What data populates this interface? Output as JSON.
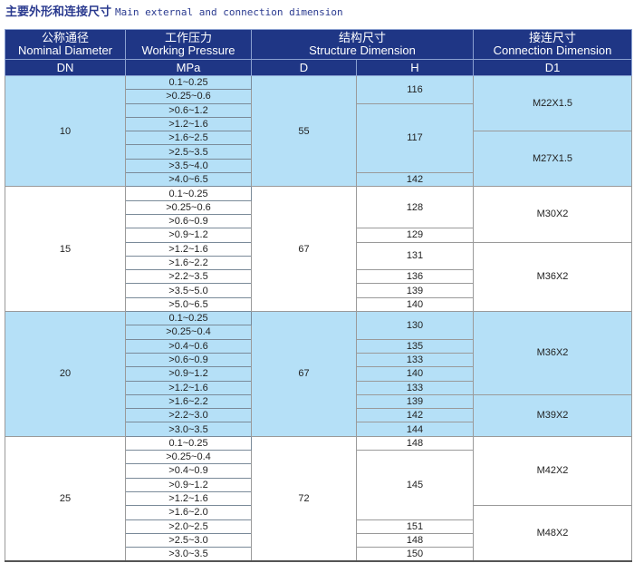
{
  "title": {
    "cn": "主要外形和连接尺寸",
    "en": "Main external and connection  dimension"
  },
  "header": {
    "nominal_cn": "公称通径",
    "nominal_en": "Nominal Diameter",
    "pressure_cn": "工作压力",
    "pressure_en": "Working Pressure",
    "structure_cn": "结构尺寸",
    "structure_en": "Structure Dimension",
    "connection_cn": "接连尺寸",
    "connection_en": "Connection Dimension",
    "dn": "DN",
    "mpa": "MPa",
    "d": "D",
    "h": "H",
    "d1": "D1"
  },
  "colors": {
    "header": "#1f3685",
    "band": "#b5e0f7"
  },
  "groups": [
    {
      "dn": "10",
      "d": "55",
      "shade": "blue",
      "pressures": [
        "0.1~0.25",
        ">0.25~0.6",
        ">0.6~1.2",
        ">1.2~1.6",
        ">1.6~2.5",
        ">2.5~3.5",
        ">3.5~4.0",
        ">4.0~6.5"
      ],
      "h": [
        {
          "v": "116",
          "rows": 2
        },
        {
          "v": "117",
          "rows": 5
        },
        {
          "v": "142",
          "rows": 1
        }
      ],
      "d1": [
        {
          "v": "M22X1.5",
          "rows": 4
        },
        {
          "v": "M27X1.5",
          "rows": 4
        }
      ]
    },
    {
      "dn": "15",
      "d": "67",
      "shade": "white",
      "pressures": [
        "0.1~0.25",
        ">0.25~0.6",
        ">0.6~0.9",
        ">0.9~1.2",
        ">1.2~1.6",
        ">1.6~2.2",
        ">2.2~3.5",
        ">3.5~5.0",
        ">5.0~6.5"
      ],
      "h": [
        {
          "v": "128",
          "rows": 3
        },
        {
          "v": "129",
          "rows": 1
        },
        {
          "v": "131",
          "rows": 2
        },
        {
          "v": "136",
          "rows": 1
        },
        {
          "v": "139",
          "rows": 1
        },
        {
          "v": "140",
          "rows": 1
        }
      ],
      "d1": [
        {
          "v": "M30X2",
          "rows": 4
        },
        {
          "v": "M36X2",
          "rows": 5
        }
      ]
    },
    {
      "dn": "20",
      "d": "67",
      "shade": "blue",
      "pressures": [
        "0.1~0.25",
        ">0.25~0.4",
        ">0.4~0.6",
        ">0.6~0.9",
        ">0.9~1.2",
        ">1.2~1.6",
        ">1.6~2.2",
        ">2.2~3.0",
        ">3.0~3.5"
      ],
      "h": [
        {
          "v": "130",
          "rows": 2
        },
        {
          "v": "135",
          "rows": 1
        },
        {
          "v": "133",
          "rows": 1
        },
        {
          "v": "140",
          "rows": 1
        },
        {
          "v": "133",
          "rows": 1
        },
        {
          "v": "139",
          "rows": 1
        },
        {
          "v": "142",
          "rows": 1
        },
        {
          "v": "144",
          "rows": 1
        }
      ],
      "d1": [
        {
          "v": "M36X2",
          "rows": 6
        },
        {
          "v": "M39X2",
          "rows": 3
        }
      ]
    },
    {
      "dn": "25",
      "d": "72",
      "shade": "white",
      "pressures": [
        "0.1~0.25",
        ">0.25~0.4",
        ">0.4~0.9",
        ">0.9~1.2",
        ">1.2~1.6",
        ">1.6~2.0",
        ">2.0~2.5",
        ">2.5~3.0",
        ">3.0~3.5"
      ],
      "h": [
        {
          "v": "148",
          "rows": 1
        },
        {
          "v": "145",
          "rows": 5
        },
        {
          "v": "151",
          "rows": 1
        },
        {
          "v": "148",
          "rows": 1
        },
        {
          "v": "150",
          "rows": 1
        }
      ],
      "d1": [
        {
          "v": "M42X2",
          "rows": 5
        },
        {
          "v": "M48X2",
          "rows": 4
        }
      ]
    }
  ]
}
